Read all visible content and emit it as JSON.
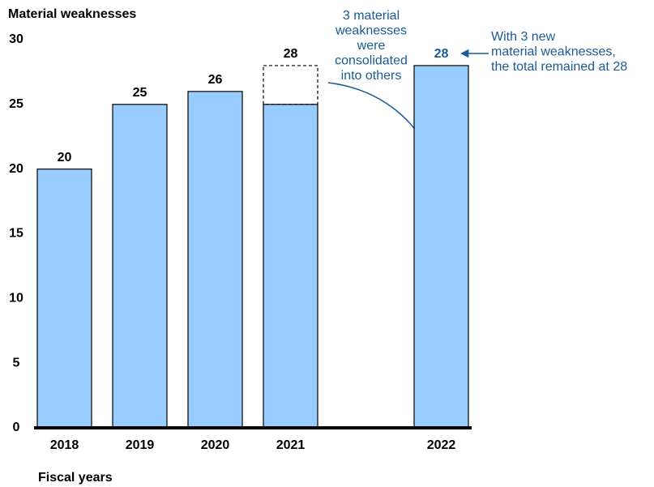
{
  "chart_data": {
    "type": "bar",
    "title": "Material weaknesses",
    "x_label": "Fiscal years",
    "categories": [
      "2018",
      "2019",
      "2020",
      "2021",
      null,
      "2022"
    ],
    "series": [
      {
        "color": "#99ccff",
        "values": [
          20,
          25,
          26,
          25,
          null,
          28
        ]
      },
      {
        "color": "none",
        "dashed": true,
        "values": [
          null,
          null,
          null,
          3,
          null,
          null
        ]
      }
    ],
    "totals": [
      20,
      25,
      26,
      28,
      null,
      28
    ],
    "total_colors": [
      "#000000",
      "#000000",
      "#000000",
      "#000000",
      null,
      "#1a5a96"
    ],
    "ylim": [
      0,
      30
    ],
    "yticks": [
      0,
      5,
      10,
      15,
      20,
      25,
      30
    ],
    "grid": false,
    "annotations": [
      {
        "lines": [
          "3 material",
          "weaknesses",
          "were",
          "consolidated",
          "into others"
        ],
        "color": "#1a5a96"
      },
      {
        "lines": [
          "With 3 new",
          "material weaknesses,",
          "the total remained at 28"
        ],
        "color": "#1a5a96"
      }
    ]
  }
}
